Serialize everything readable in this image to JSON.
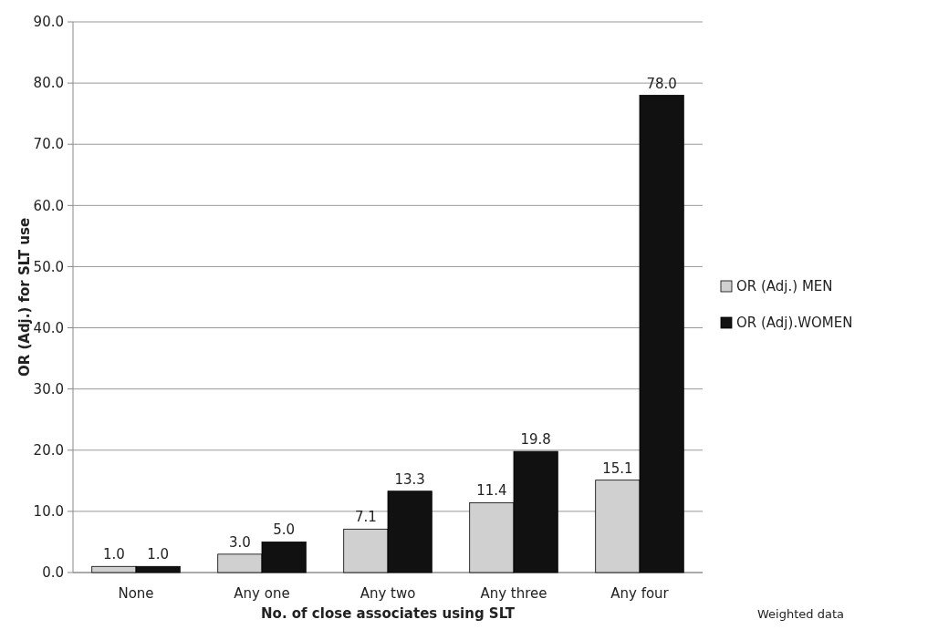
{
  "chart_data": {
    "type": "bar",
    "xlabel": "No. of close associates using SLT",
    "ylabel": "OR (Adj.) for SLT use",
    "categories": [
      "None",
      "Any one",
      "Any two",
      "Any three",
      "Any four"
    ],
    "series": [
      {
        "name": "OR (Adj.) MEN",
        "color": "#d0d0d0",
        "values": [
          1.0,
          3.0,
          7.1,
          11.4,
          15.1
        ],
        "value_labels": [
          "1.0",
          "3.0",
          "7.1",
          "11.4",
          "15.1"
        ]
      },
      {
        "name": "OR (Adj).WOMEN",
        "color": "#111111",
        "values": [
          1.0,
          5.0,
          13.3,
          19.8,
          78.0
        ],
        "value_labels": [
          "1.0",
          "5.0",
          "13.3",
          "19.8",
          "78.0"
        ]
      }
    ],
    "ylim": [
      0,
      90
    ],
    "yticks": [
      {
        "value": 0,
        "label": "0.0"
      },
      {
        "value": 10,
        "label": "10.0"
      },
      {
        "value": 20,
        "label": "20.0"
      },
      {
        "value": 30,
        "label": "30.0"
      },
      {
        "value": 40,
        "label": "40.0"
      },
      {
        "value": 50,
        "label": "50.0"
      },
      {
        "value": 60,
        "label": "60.0"
      },
      {
        "value": 70,
        "label": "70.0"
      },
      {
        "value": 80,
        "label": "80.0"
      },
      {
        "value": 90,
        "label": "90.0"
      }
    ],
    "grid": "y",
    "legend": "right",
    "annotations": [
      "Weighted data"
    ]
  }
}
